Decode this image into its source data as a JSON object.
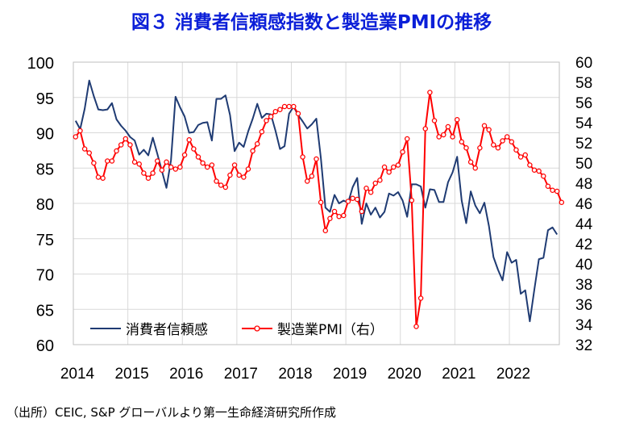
{
  "title": "図３ 消費者信頼感指数と製造業PMIの推移",
  "source": "（出所）CEIC, S&P グローバルより第一生命経済研究所作成",
  "colors": {
    "title": "#0b1fd8",
    "consumer": "#1f3b73",
    "pmi": "#ff0000",
    "grid": "#d9d9d9"
  },
  "chart_data": {
    "type": "line",
    "x_labels": [
      "2014",
      "2015",
      "2016",
      "2017",
      "2018",
      "2019",
      "2020",
      "2021",
      "2022"
    ],
    "y_left": {
      "ticks": [
        60,
        65,
        70,
        75,
        80,
        85,
        90,
        95,
        100
      ],
      "min": 60,
      "max": 100
    },
    "y_right": {
      "ticks": [
        32,
        34,
        36,
        38,
        40,
        42,
        44,
        46,
        48,
        50,
        52,
        54,
        56,
        58,
        60
      ],
      "min": 32,
      "max": 60
    },
    "legend": {
      "placement": "bottom-left"
    },
    "series": [
      {
        "name": "消費者信頼感",
        "axis": "left",
        "values": [
          91.7,
          90.5,
          93.4,
          97.4,
          95.2,
          93.3,
          93.2,
          93.3,
          94.2,
          91.9,
          91.0,
          90.3,
          89.4,
          88.9,
          86.9,
          87.6,
          86.8,
          89.3,
          87.0,
          84.6,
          82.2,
          86.1,
          95.1,
          93.6,
          92.3,
          90.0,
          90.1,
          91.1,
          91.4,
          91.5,
          88.9,
          94.8,
          94.8,
          95.3,
          92.5,
          87.4,
          88.6,
          88.0,
          90.2,
          92.0,
          94.1,
          92.1,
          92.7,
          92.6,
          90.3,
          87.7,
          88.1,
          92.7,
          93.7,
          92.5,
          91.6,
          90.6,
          91.2,
          92.0,
          86.4,
          79.4,
          78.8,
          81.2,
          80.0,
          80.4,
          80.1,
          82.3,
          83.6,
          77.1,
          80.0,
          78.4,
          79.4,
          78.0,
          78.8,
          81.4,
          81.1,
          81.6,
          80.4,
          78.1,
          82.7,
          82.7,
          82.4,
          79.4,
          82.0,
          81.9,
          80.2,
          80.2,
          83.0,
          84.4,
          86.6,
          80.4,
          77.2,
          81.7,
          79.7,
          78.6,
          80.1,
          76.8,
          72.4,
          70.6,
          69.1,
          73.1,
          71.6,
          72.0,
          67.2,
          67.7,
          63.3,
          67.8,
          72.1,
          72.3,
          76.2,
          76.6,
          75.6
        ]
      },
      {
        "name": "製造業PMI（右）",
        "axis": "right",
        "values": [
          52.6,
          53.2,
          51.4,
          51.0,
          50.0,
          48.6,
          48.5,
          50.2,
          50.2,
          51.2,
          51.8,
          52.4,
          51.8,
          50.1,
          49.9,
          49.0,
          48.5,
          49.0,
          50.2,
          49.3,
          50.1,
          49.6,
          49.4,
          49.6,
          50.8,
          52.3,
          51.4,
          50.6,
          50.0,
          49.6,
          49.8,
          48.2,
          47.8,
          47.6,
          48.8,
          49.8,
          48.8,
          48.6,
          49.4,
          51.2,
          51.9,
          53.1,
          54.2,
          54.6,
          55.1,
          55.3,
          55.6,
          55.6,
          55.6,
          54.9,
          50.6,
          48.2,
          48.7,
          50.4,
          46.1,
          43.3,
          44.5,
          45.2,
          44.7,
          44.8,
          46.2,
          46.5,
          46.4,
          45.2,
          47.5,
          47.1,
          48.0,
          48.3,
          49.6,
          49.1,
          49.6,
          49.8,
          51.1,
          52.4,
          46.3,
          33.8,
          36.6,
          53.4,
          57.0,
          54.2,
          52.6,
          52.8,
          53.6,
          52.6,
          54.3,
          52.1,
          51.5,
          50.1,
          49.5,
          51.5,
          53.7,
          53.3,
          51.8,
          51.5,
          52.2,
          52.6,
          52.1,
          51.3,
          50.6,
          50.8,
          49.8,
          49.3,
          49.2,
          48.7,
          47.7,
          47.3,
          47.2,
          46.1
        ]
      }
    ]
  }
}
